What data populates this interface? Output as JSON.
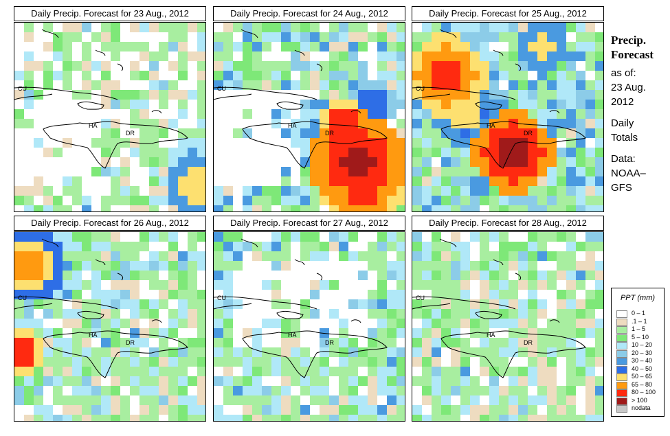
{
  "panels": [
    {
      "title": "Daily Precip. Forecast for  23 Aug., 2012",
      "day": 23
    },
    {
      "title": "Daily Precip. Forecast for  24 Aug., 2012",
      "day": 24
    },
    {
      "title": "Daily Precip. Forecast for  25 Aug., 2012",
      "day": 25
    },
    {
      "title": "Daily Precip. Forecast for  26 Aug., 2012",
      "day": 26
    },
    {
      "title": "Daily Precip. Forecast for  27 Aug., 2012",
      "day": 27
    },
    {
      "title": "Daily Precip. Forecast for  28 Aug., 2012",
      "day": 28
    }
  ],
  "map_labels": {
    "cuba": "CU",
    "haiti": "HA",
    "dominican_republic": "DR"
  },
  "side": {
    "title_line1": "Precip.",
    "title_line2": "Forecast",
    "asof": "as of:",
    "date_line1": "23 Aug.",
    "date_line2": "2012",
    "totals_line1": "Daily",
    "totals_line2": "Totals",
    "data_line1": "Data:",
    "data_line2": "NOAA–",
    "data_line3": "GFS"
  },
  "legend": {
    "title": "PPT (mm)",
    "items": [
      {
        "label": "0 – 1",
        "color": "#ffffff"
      },
      {
        "label": ".1 – 1",
        "color": "#eedcc0"
      },
      {
        "label": "1 – 5",
        "color": "#a8eea0"
      },
      {
        "label": "5 – 10",
        "color": "#7ee878"
      },
      {
        "label": "10 – 20",
        "color": "#b0e8f8"
      },
      {
        "label": "20 – 30",
        "color": "#8ccce8"
      },
      {
        "label": "30 – 40",
        "color": "#4a9ae0"
      },
      {
        "label": "40 – 50",
        "color": "#2e6ee6"
      },
      {
        "label": "50 – 65",
        "color": "#fde070"
      },
      {
        "label": "65 – 80",
        "color": "#ff9a10"
      },
      {
        "label": "80 – 100",
        "color": "#ff2a10"
      },
      {
        "label": "> 100",
        "color": "#a01a1a"
      },
      {
        "label": "nodata",
        "color": "#c8c8c8"
      }
    ]
  }
}
